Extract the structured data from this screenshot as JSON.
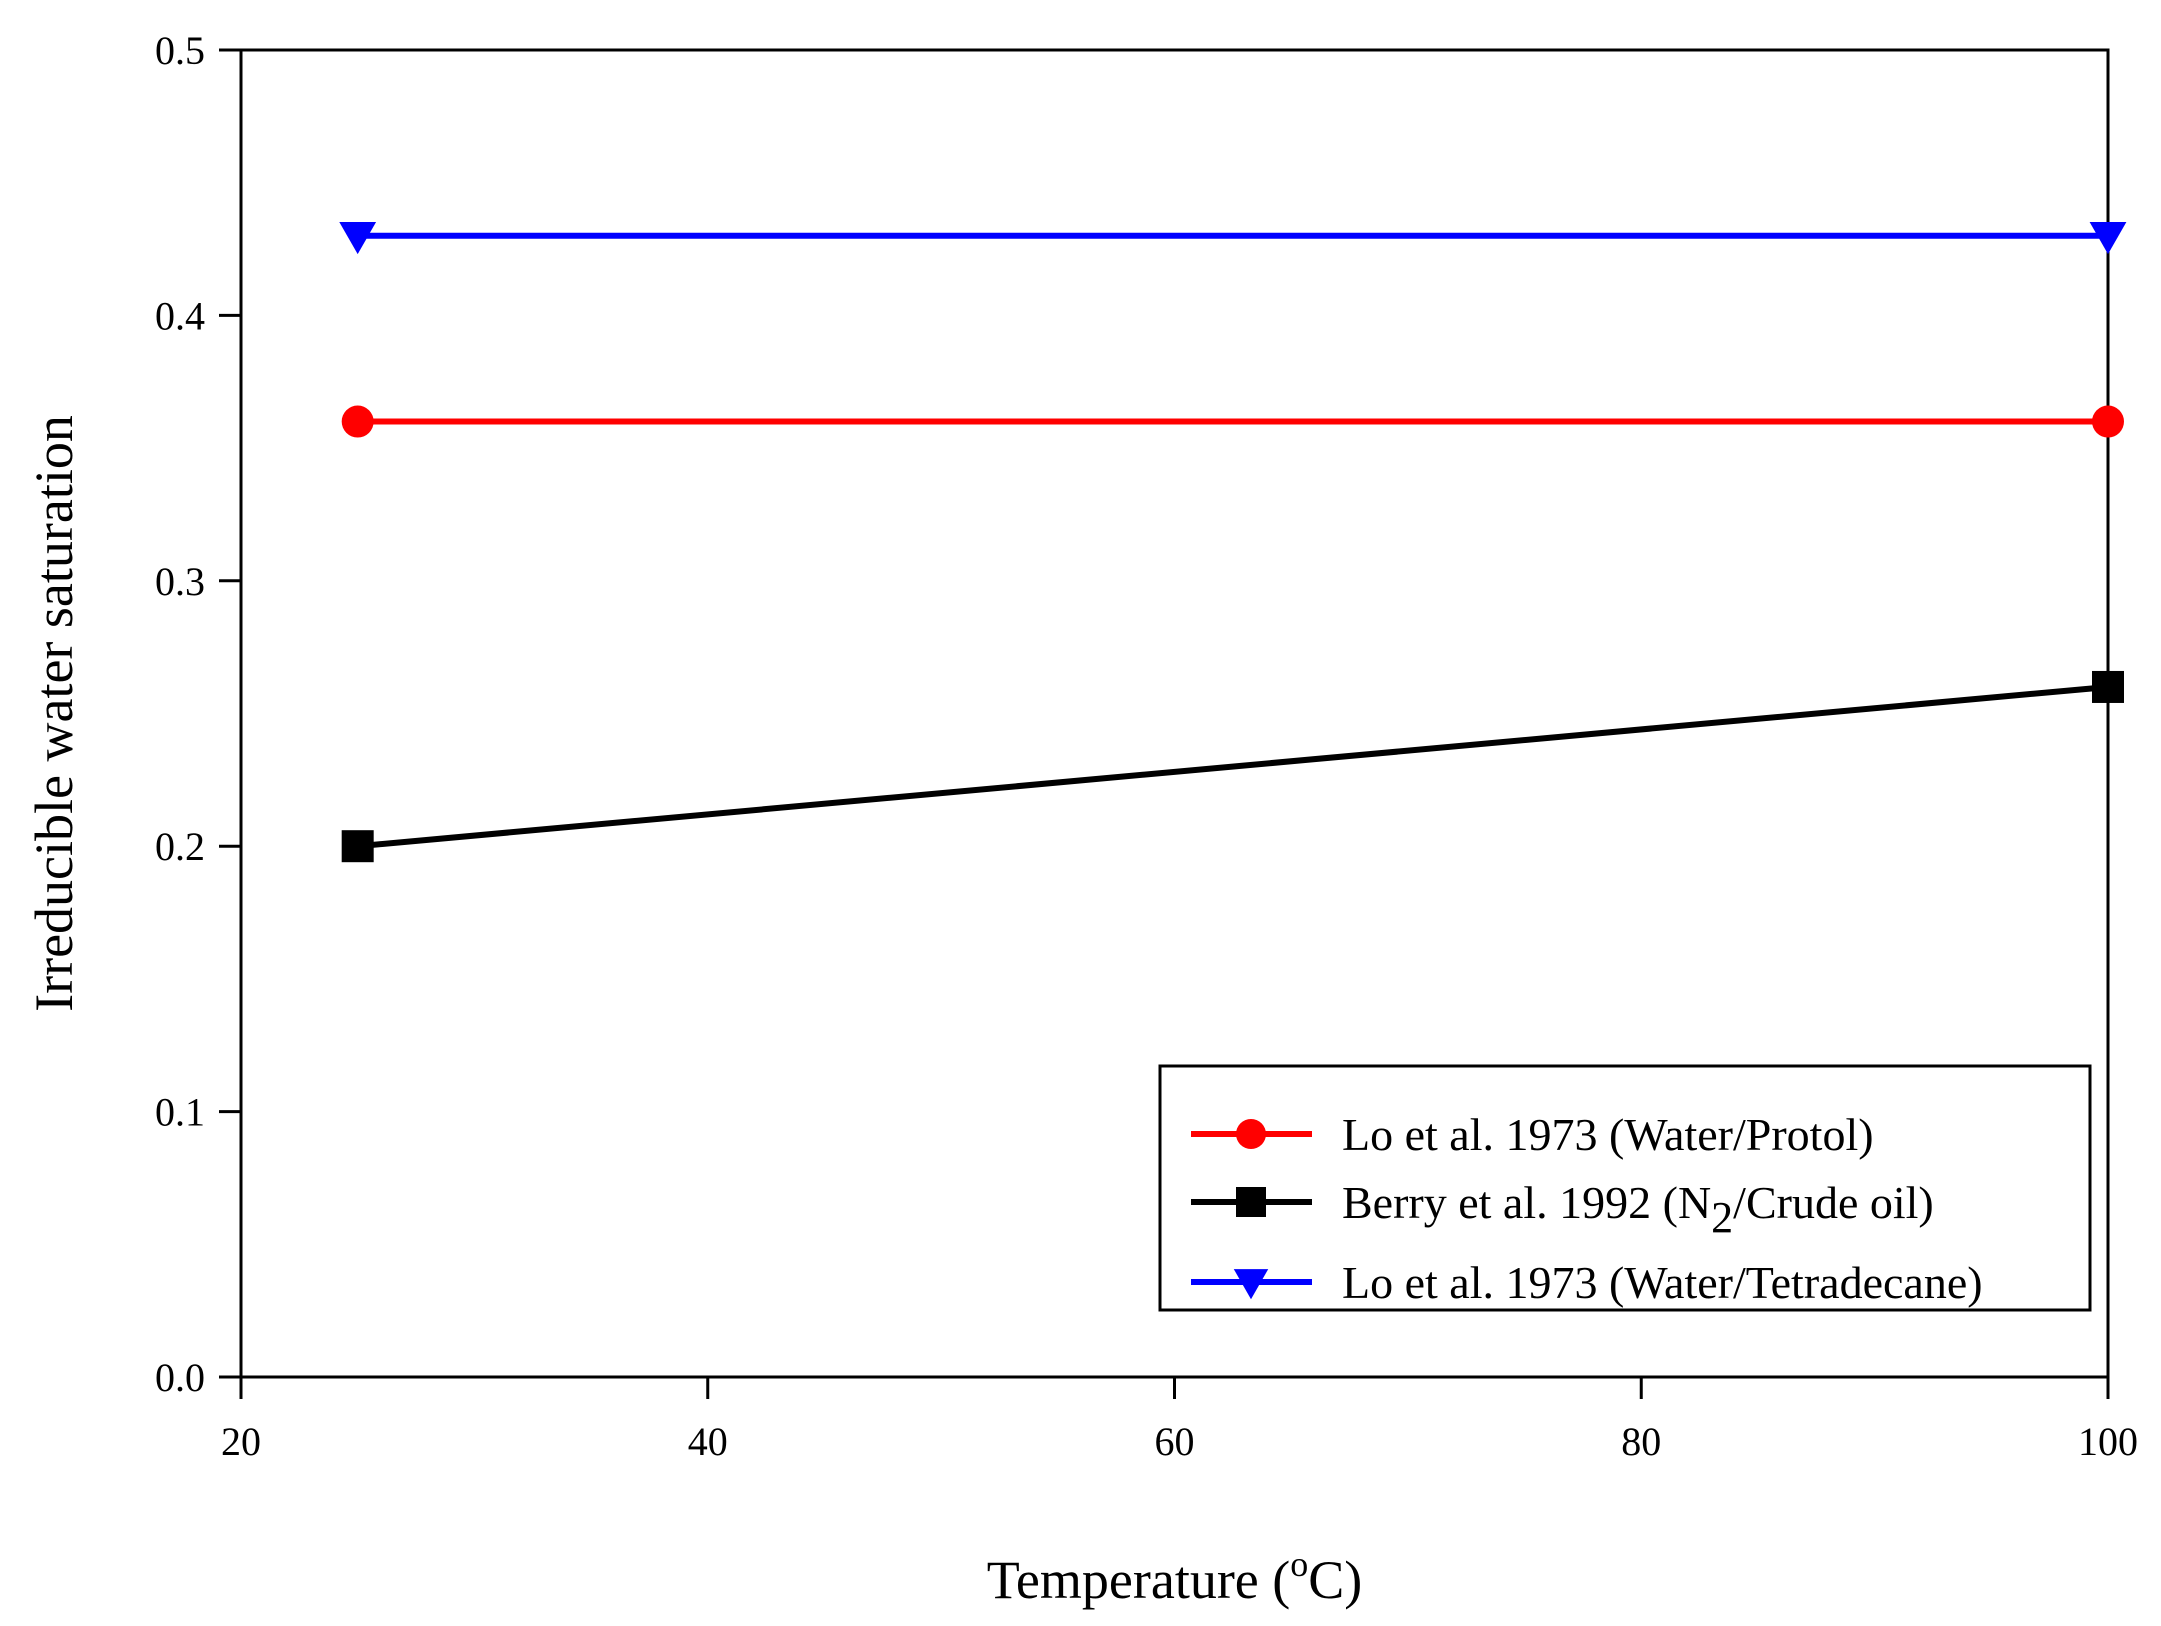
{
  "chart_data": {
    "type": "line",
    "title": "",
    "xlabel": {
      "prefix": "Temperature (",
      "sup": "o",
      "suffix": "C)"
    },
    "ylabel": "Irreducible water saturation",
    "xlim": [
      20,
      100
    ],
    "ylim": [
      0.0,
      0.5
    ],
    "xticks": [
      20,
      40,
      60,
      80,
      100
    ],
    "yticks": [
      0.0,
      0.1,
      0.2,
      0.3,
      0.4,
      0.5
    ],
    "xtick_labels": [
      "20",
      "40",
      "60",
      "80",
      "100"
    ],
    "ytick_labels": [
      "0.0",
      "0.1",
      "0.2",
      "0.3",
      "0.4",
      "0.5"
    ],
    "grid": false,
    "legend_position": "bottom-right",
    "series": [
      {
        "name": "Lo et al. 1973 (Water/Protol)",
        "legend": {
          "main": "Lo et al. 1973 (Water/Protol)",
          "sub": "",
          "after": ""
        },
        "color": "#ff0000",
        "marker": "circle",
        "x": [
          25,
          100
        ],
        "y": [
          0.36,
          0.36
        ]
      },
      {
        "name": "Berry et al. 1992 (N2/Crude oil)",
        "legend": {
          "main": "Berry et al. 1992 (N",
          "sub": "2",
          "after": "/Crude oil)"
        },
        "color": "#000000",
        "marker": "square",
        "x": [
          25,
          100
        ],
        "y": [
          0.2,
          0.26
        ]
      },
      {
        "name": "Lo et al. 1973 (Water/Tetradecane)",
        "legend": {
          "main": "Lo et al. 1973 (Water/Tetradecane)",
          "sub": "",
          "after": ""
        },
        "color": "#0000ff",
        "marker": "triangle-down",
        "x": [
          25,
          100
        ],
        "y": [
          0.43,
          0.43
        ]
      }
    ]
  }
}
